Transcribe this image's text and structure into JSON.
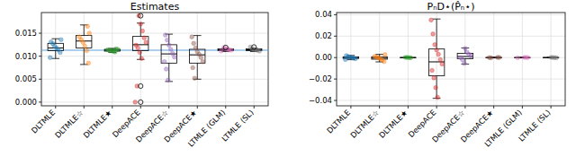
{
  "chart_data": [
    {
      "type": "box",
      "title": "Estimates",
      "categories": [
        "DLTMLE",
        "DLTMLE☆",
        "DLTMLE★",
        "DeepACE",
        "DeepACE☆",
        "DeepACE★",
        "LTMLE (GLM)",
        "LTMLE (SL)"
      ],
      "colors": [
        "#1f77b4",
        "#ff7f0e",
        "#2ca02c",
        "#d62728",
        "#9467bd",
        "#8c564b",
        "#e377c2",
        "#7f7f7f"
      ],
      "ylim": [
        -0.0008,
        0.0195
      ],
      "yticks": [
        {
          "value": 0,
          "label": "0.000"
        },
        {
          "value": 0.005,
          "label": "0.005"
        },
        {
          "value": 0.01,
          "label": "0.010"
        },
        {
          "value": 0.015,
          "label": "0.015"
        }
      ],
      "grid": true,
      "reference_line": 0.0113,
      "boxes": [
        {
          "whislo": 0.0095,
          "q1": 0.0112,
          "med": 0.0118,
          "q3": 0.0128,
          "whishi": 0.0138,
          "fliers": [],
          "points": [
            0.0097,
            0.0108,
            0.0114,
            0.0118,
            0.0122,
            0.0127,
            0.0131,
            0.0136
          ]
        },
        {
          "whislo": 0.0082,
          "q1": 0.0118,
          "med": 0.0133,
          "q3": 0.0145,
          "whishi": 0.0168,
          "fliers": [],
          "points": [
            0.0085,
            0.0112,
            0.0122,
            0.013,
            0.0136,
            0.0142,
            0.015,
            0.0165
          ]
        },
        {
          "whislo": 0.0108,
          "q1": 0.0111,
          "med": 0.0113,
          "q3": 0.0115,
          "whishi": 0.0117,
          "fliers": [],
          "points": [
            0.0109,
            0.0111,
            0.0112,
            0.0113,
            0.0114,
            0.0115,
            0.0116
          ]
        },
        {
          "whislo": 0.0093,
          "q1": 0.0112,
          "med": 0.0125,
          "q3": 0.0143,
          "whishi": 0.0172,
          "fliers": [
            0.0188,
            0.0035,
            0.0
          ],
          "points": [
            0.0095,
            0.0108,
            0.0118,
            0.0124,
            0.013,
            0.014,
            0.0155,
            0.017,
            0.0188,
            0.0035,
            0.0
          ]
        },
        {
          "whislo": 0.0045,
          "q1": 0.0085,
          "med": 0.0105,
          "q3": 0.0125,
          "whishi": 0.0148,
          "fliers": [],
          "points": [
            0.0048,
            0.0072,
            0.0088,
            0.0098,
            0.0106,
            0.0115,
            0.0124,
            0.0135,
            0.0146
          ]
        },
        {
          "whislo": 0.005,
          "q1": 0.0085,
          "med": 0.0103,
          "q3": 0.0115,
          "whishi": 0.0145,
          "fliers": [],
          "points": [
            0.0052,
            0.0075,
            0.0088,
            0.0097,
            0.0104,
            0.011,
            0.0118,
            0.0128,
            0.0142
          ]
        },
        {
          "whislo": 0.011,
          "q1": 0.0112,
          "med": 0.0114,
          "q3": 0.0116,
          "whishi": 0.0117,
          "fliers": [
            0.0119
          ],
          "points": [
            0.0111,
            0.0113,
            0.0114,
            0.0115,
            0.0116,
            0.0119
          ]
        },
        {
          "whislo": 0.011,
          "q1": 0.0112,
          "med": 0.0114,
          "q3": 0.0116,
          "whishi": 0.0117,
          "fliers": [
            0.012
          ],
          "points": [
            0.0111,
            0.0113,
            0.0114,
            0.0115,
            0.0116,
            0.012
          ]
        }
      ]
    },
    {
      "type": "box",
      "title": "PₙD⋆(P̂ₙ⋆)",
      "categories": [
        "DLTMLE",
        "DLTMLE☆",
        "DLTMLE★",
        "DeepACE",
        "DeepACE☆",
        "DeepACE★",
        "LTMLE (GLM)",
        "LTMLE (SL)"
      ],
      "colors": [
        "#1f77b4",
        "#ff7f0e",
        "#2ca02c",
        "#d62728",
        "#9467bd",
        "#8c564b",
        "#e377c2",
        "#7f7f7f"
      ],
      "ylim": [
        -0.045,
        0.042
      ],
      "yticks": [
        {
          "value": -0.04,
          "label": "−0.04"
        },
        {
          "value": -0.02,
          "label": "−0.02"
        },
        {
          "value": 0,
          "label": "0.00"
        },
        {
          "value": 0.02,
          "label": "0.02"
        },
        {
          "value": 0.04,
          "label": "0.04"
        }
      ],
      "grid": true,
      "boxes": [
        {
          "whislo": -0.002,
          "q1": -0.0008,
          "med": 0.0,
          "q3": 0.0007,
          "whishi": 0.002,
          "fliers": [],
          "points": [
            -0.0018,
            -0.001,
            -0.0004,
            0.0,
            0.0004,
            0.0009,
            0.0018
          ]
        },
        {
          "whislo": -0.004,
          "q1": -0.0015,
          "med": -0.0005,
          "q3": 0.0008,
          "whishi": 0.003,
          "fliers": [],
          "points": [
            -0.0038,
            -0.0022,
            -0.001,
            -0.0004,
            0.0003,
            0.0012,
            0.0028
          ]
        },
        {
          "whislo": -0.0003,
          "q1": -0.0001,
          "med": 0.0,
          "q3": 0.0001,
          "whishi": 0.0003,
          "fliers": [],
          "points": [
            -0.0002,
            0.0,
            0.0001,
            0.0002
          ]
        },
        {
          "whislo": -0.038,
          "q1": -0.017,
          "med": -0.004,
          "q3": 0.008,
          "whishi": 0.036,
          "fliers": [],
          "points": [
            -0.037,
            -0.028,
            -0.019,
            -0.012,
            -0.006,
            -0.002,
            0.003,
            0.007,
            0.012,
            0.022,
            0.035
          ]
        },
        {
          "whislo": -0.006,
          "q1": -0.001,
          "med": 0.001,
          "q3": 0.004,
          "whishi": 0.009,
          "fliers": [],
          "points": [
            -0.0055,
            -0.002,
            0.0,
            0.0015,
            0.003,
            0.005,
            0.0085
          ]
        },
        {
          "whislo": -0.0003,
          "q1": -0.0001,
          "med": 0.0,
          "q3": 0.0001,
          "whishi": 0.0003,
          "fliers": [],
          "points": [
            -0.0002,
            0.0,
            0.0001,
            0.0002
          ]
        },
        {
          "whislo": -0.0003,
          "q1": -0.0001,
          "med": 0.0,
          "q3": 0.0001,
          "whishi": 0.0003,
          "fliers": [],
          "points": [
            -0.0002,
            0.0,
            0.0001,
            0.0002
          ]
        },
        {
          "whislo": -0.0003,
          "q1": -0.0001,
          "med": 0.0,
          "q3": 0.0001,
          "whishi": 0.0003,
          "fliers": [],
          "points": [
            -0.0002,
            0.0,
            0.0001,
            0.0002
          ]
        }
      ]
    }
  ]
}
